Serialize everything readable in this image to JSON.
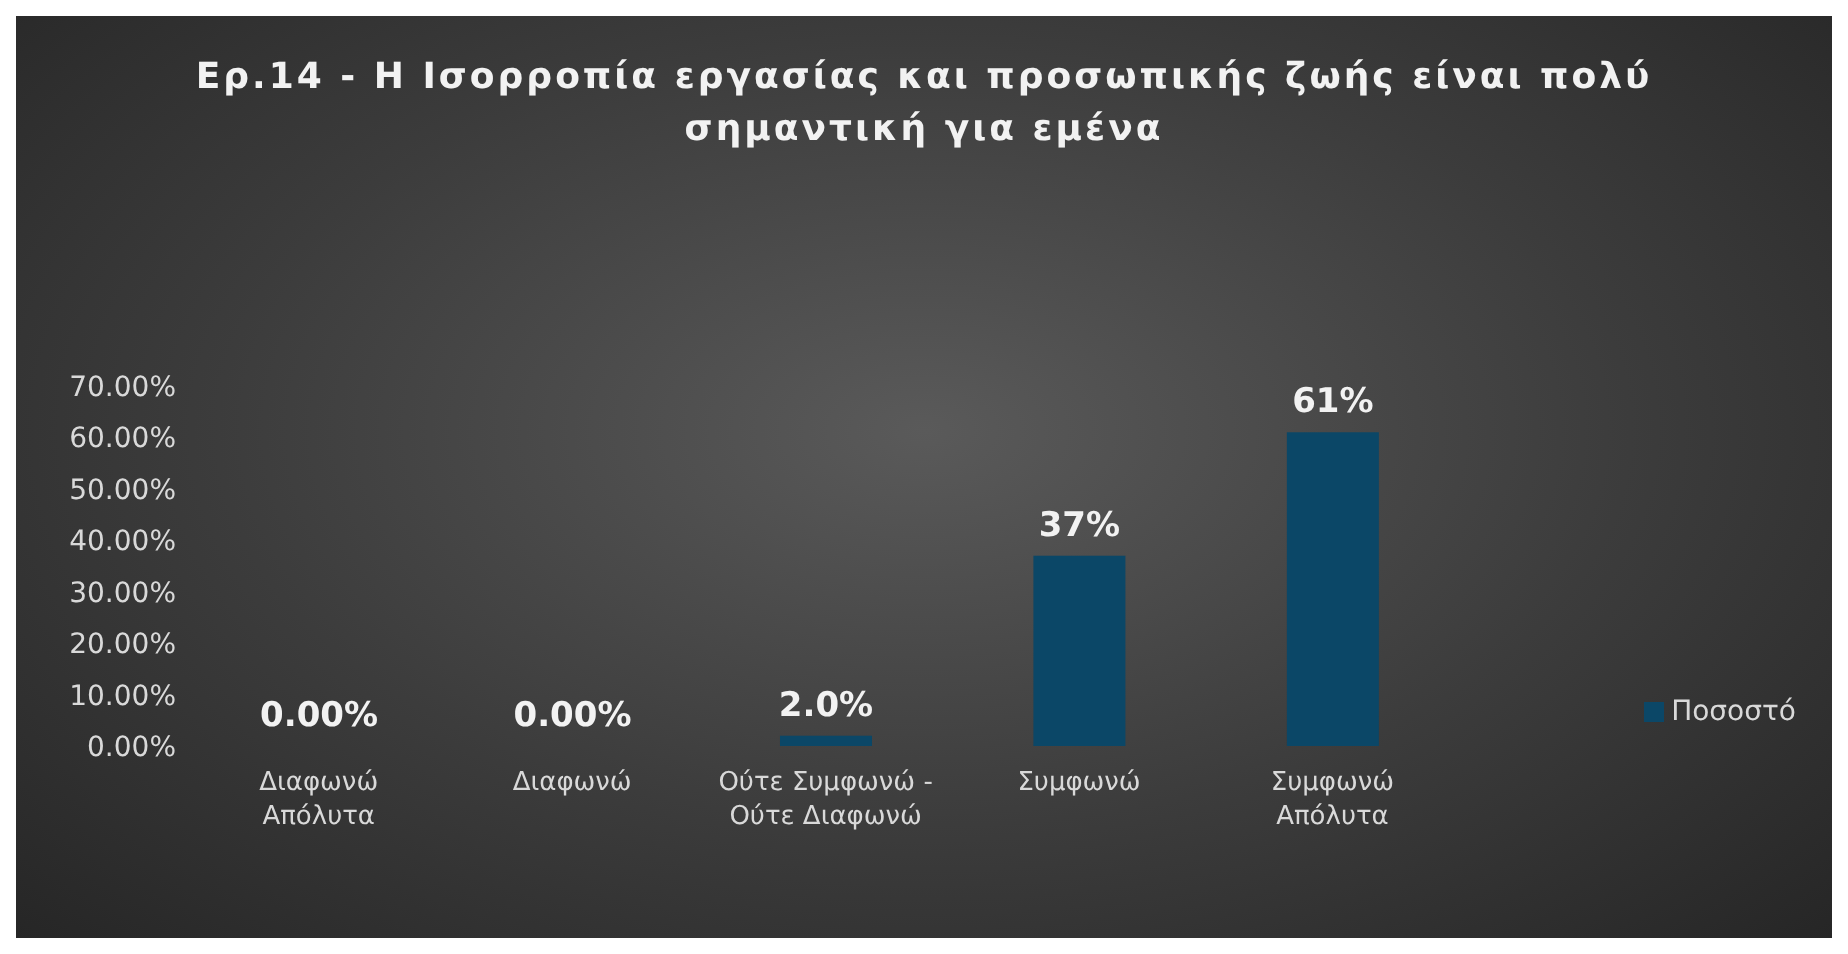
{
  "chart_data": {
    "type": "bar",
    "title": "Ερ.14 -  Η Ισορροπία εργασίας και προσωπικής ζωής είναι πολύ σημαντική για εμένα",
    "categories": [
      "Διαφωνώ Απόλυτα",
      "Διαφωνώ",
      "Ούτε Συμφωνώ - Ούτε Διαφωνώ",
      "Συμφωνώ",
      "Συμφωνώ Απόλυτα"
    ],
    "series": [
      {
        "name": "Ποσοστό",
        "color": "#0b4767",
        "values": [
          0,
          0,
          2,
          37,
          61
        ],
        "value_labels": [
          "0.00%",
          "0.00%",
          "2.0%",
          "37%",
          "61%"
        ]
      }
    ],
    "ylim": [
      0,
      70
    ],
    "yticks": [
      {
        "value": 0,
        "label": "0.00%"
      },
      {
        "value": 10,
        "label": "10.00%"
      },
      {
        "value": 20,
        "label": "20.00%"
      },
      {
        "value": 30,
        "label": "30.00%"
      },
      {
        "value": 40,
        "label": "40.00%"
      },
      {
        "value": 50,
        "label": "50.00%"
      },
      {
        "value": 60,
        "label": "60.00%"
      },
      {
        "value": 70,
        "label": "70.00%"
      }
    ],
    "grid": false,
    "legend": "right"
  }
}
